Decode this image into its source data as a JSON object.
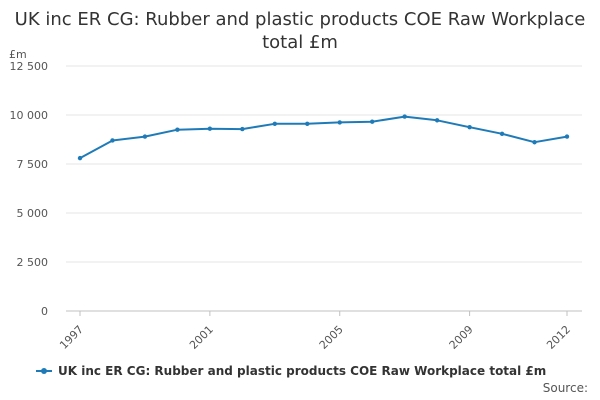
{
  "chart_data": {
    "type": "line",
    "title": "UK inc ER CG: Rubber and plastic products COE Raw Workplace total £m",
    "unit_label": "£m",
    "xlabel": "",
    "ylabel": "",
    "ylim": [
      0,
      12500
    ],
    "y_ticks": [
      0,
      2500,
      5000,
      7500,
      10000,
      12500
    ],
    "y_tick_labels": [
      "0",
      "2 500",
      "5 000",
      "7 500",
      "10 000",
      "12 500"
    ],
    "x_tick_labels": [
      "1997",
      "2001",
      "2005",
      "2009",
      "2012"
    ],
    "grid": true,
    "legend_position": "bottom",
    "series": [
      {
        "name": "UK inc ER CG: Rubber and plastic products COE Raw Workplace total £m",
        "color": "#1f7bb8",
        "x": [
          1997,
          1998,
          1999,
          2000,
          2001,
          2002,
          2003,
          2004,
          2005,
          2006,
          2007,
          2008,
          2009,
          2010,
          2011,
          2012
        ],
        "values": [
          7800,
          8700,
          8900,
          9250,
          9300,
          9280,
          9550,
          9550,
          9620,
          9660,
          9920,
          9730,
          9380,
          9040,
          8610,
          8900
        ]
      }
    ]
  },
  "source_label": "Source:"
}
